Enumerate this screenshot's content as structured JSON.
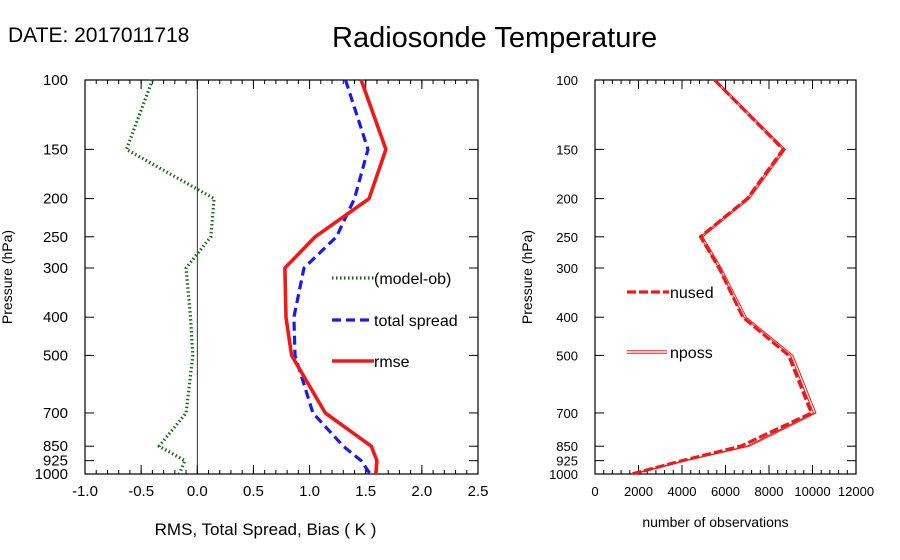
{
  "date_label": "DATE: 2017011718",
  "title": "Radiosonde Temperature",
  "chart_data": [
    {
      "type": "line",
      "xlabel": "RMS, Total Spread, Bias ( K )",
      "ylabel": "Pressure (hPa)",
      "xlim": [
        -1.0,
        2.5
      ],
      "ylim": [
        1000,
        100
      ],
      "yscale": "log",
      "xticks": [
        -1.0,
        -0.5,
        0.0,
        0.5,
        1.0,
        1.5,
        2.0,
        2.5
      ],
      "xtick_labels": [
        "-1.0",
        "-0.5",
        "0.0",
        "0.5",
        "1.0",
        "1.5",
        "2.0",
        "2.5"
      ],
      "yticks": [
        100,
        150,
        200,
        250,
        300,
        400,
        500,
        700,
        850,
        925,
        1000
      ],
      "ytick_labels": [
        "100",
        "150",
        "200",
        "250",
        "300",
        "400",
        "500",
        "700",
        "850",
        "925",
        "1000"
      ],
      "vline_at": 0.0,
      "legend_position": "middle-right",
      "series": [
        {
          "name": "(model-ob)",
          "color": "#1a6b1a",
          "style": "dotted",
          "pressure": [
            100,
            150,
            200,
            250,
            300,
            400,
            500,
            700,
            850,
            925,
            1000
          ],
          "values": [
            -0.4,
            -0.63,
            0.15,
            0.12,
            -0.1,
            -0.06,
            -0.04,
            -0.1,
            -0.34,
            -0.11,
            -0.16
          ]
        },
        {
          "name": "total spread",
          "color": "#1a1aee",
          "style": "dashed",
          "pressure": [
            100,
            150,
            200,
            250,
            300,
            400,
            500,
            700,
            850,
            925,
            1000
          ],
          "values": [
            1.32,
            1.52,
            1.4,
            1.24,
            0.95,
            0.86,
            0.87,
            1.03,
            1.3,
            1.46,
            1.54
          ]
        },
        {
          "name": "rmse",
          "color": "#ee1a1a",
          "style": "solid",
          "pressure": [
            100,
            150,
            200,
            250,
            300,
            400,
            500,
            700,
            850,
            925,
            1000
          ],
          "values": [
            1.46,
            1.68,
            1.53,
            1.05,
            0.78,
            0.79,
            0.84,
            1.14,
            1.55,
            1.6,
            1.59
          ]
        }
      ]
    },
    {
      "type": "line",
      "xlabel": "number of observations",
      "ylabel": "Pressure (hPa)",
      "xlim": [
        0,
        12000
      ],
      "ylim": [
        1000,
        100
      ],
      "yscale": "log",
      "xticks": [
        0,
        2000,
        4000,
        6000,
        8000,
        10000,
        12000
      ],
      "xtick_labels": [
        "0",
        "2000",
        "4000",
        "6000",
        "8000",
        "10000",
        "12000"
      ],
      "yticks": [
        100,
        150,
        200,
        250,
        300,
        400,
        500,
        700,
        850,
        925,
        1000
      ],
      "ytick_labels": [
        "100",
        "150",
        "200",
        "250",
        "300",
        "400",
        "500",
        "700",
        "850",
        "925",
        "1000"
      ],
      "legend_position": "middle-left",
      "series": [
        {
          "name": "nused",
          "color": "#ee1a1a",
          "style": "thick-dashed",
          "pressure": [
            100,
            150,
            200,
            250,
            300,
            400,
            500,
            700,
            850,
            925,
            1000
          ],
          "values": [
            5500,
            8650,
            7000,
            4850,
            5700,
            6800,
            8900,
            9950,
            6700,
            4000,
            1700
          ]
        },
        {
          "name": "nposs",
          "color": "#ee1a1a",
          "style": "thin-double",
          "pressure": [
            100,
            150,
            200,
            250,
            300,
            400,
            500,
            700,
            850,
            925,
            1000
          ],
          "values": [
            5500,
            8700,
            7050,
            4900,
            5750,
            6900,
            9050,
            10100,
            7050,
            4150,
            1750
          ]
        }
      ]
    }
  ]
}
